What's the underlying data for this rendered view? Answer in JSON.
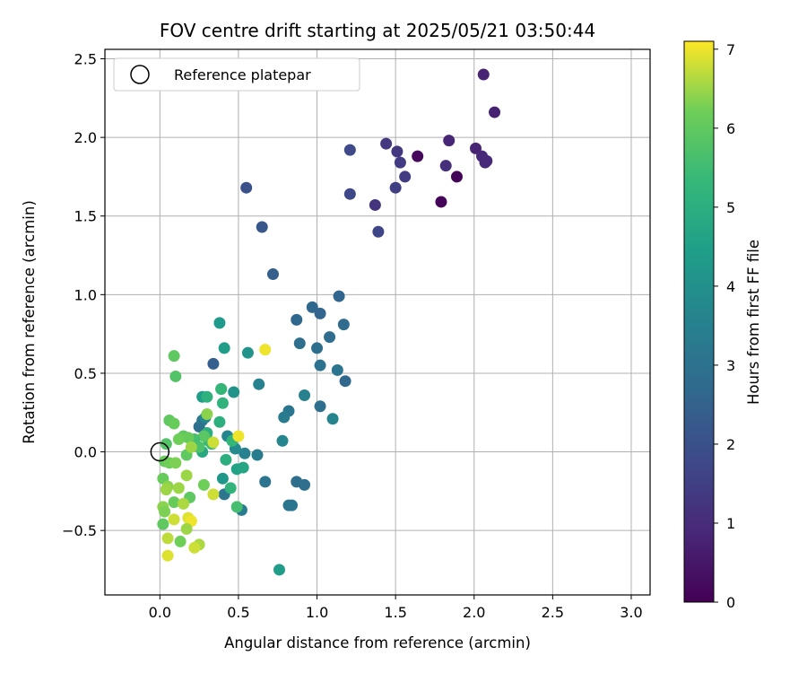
{
  "chart_data": {
    "type": "scatter",
    "title": "FOV centre drift starting at 2025/05/21 03:50:44",
    "xlabel": "Angular distance from reference (arcmin)",
    "ylabel": "Rotation from reference (arcmin)",
    "xlim": [
      -0.35,
      3.12
    ],
    "ylim": [
      -0.91,
      2.56
    ],
    "xticks": [
      0.0,
      0.5,
      1.0,
      1.5,
      2.0,
      2.5,
      3.0
    ],
    "xtick_labels": [
      "0.0",
      "0.5",
      "1.0",
      "1.5",
      "2.0",
      "2.5",
      "3.0"
    ],
    "yticks": [
      -0.5,
      0.0,
      0.5,
      1.0,
      1.5,
      2.0,
      2.5
    ],
    "ytick_labels": [
      "−0.5",
      "0.0",
      "0.5",
      "1.0",
      "1.5",
      "2.0",
      "2.5"
    ],
    "grid": true,
    "legend": {
      "placement": "upper-left",
      "entries": [
        "Reference platepar"
      ]
    },
    "reference_point": [
      0.0,
      0.0
    ],
    "colorbar": {
      "label": "Hours from first FF file",
      "range": [
        0,
        7.1
      ],
      "ticks": [
        0,
        1,
        2,
        3,
        4,
        5,
        6,
        7
      ],
      "tick_labels": [
        "0",
        "1",
        "2",
        "3",
        "4",
        "5",
        "6",
        "7"
      ],
      "colormap": "viridis"
    },
    "points": [
      {
        "x": 1.64,
        "y": 1.88,
        "h": 0.15
      },
      {
        "x": 1.89,
        "y": 1.75,
        "h": 0.1
      },
      {
        "x": 1.79,
        "y": 1.59,
        "h": 0.1
      },
      {
        "x": 2.01,
        "y": 1.93,
        "h": 0.8
      },
      {
        "x": 2.05,
        "y": 1.88,
        "h": 0.9
      },
      {
        "x": 2.08,
        "y": 1.85,
        "h": 0.9
      },
      {
        "x": 2.07,
        "y": 1.84,
        "h": 0.9
      },
      {
        "x": 2.06,
        "y": 2.4,
        "h": 0.8
      },
      {
        "x": 2.13,
        "y": 2.16,
        "h": 0.75
      },
      {
        "x": 1.84,
        "y": 1.98,
        "h": 0.85
      },
      {
        "x": 1.82,
        "y": 1.82,
        "h": 1.1
      },
      {
        "x": 1.37,
        "y": 1.57,
        "h": 1.2
      },
      {
        "x": 1.44,
        "y": 1.96,
        "h": 1.35
      },
      {
        "x": 1.51,
        "y": 1.91,
        "h": 1.3
      },
      {
        "x": 1.53,
        "y": 1.84,
        "h": 1.4
      },
      {
        "x": 1.56,
        "y": 1.75,
        "h": 1.45
      },
      {
        "x": 1.5,
        "y": 1.68,
        "h": 1.5
      },
      {
        "x": 1.39,
        "y": 1.4,
        "h": 1.7
      },
      {
        "x": 1.21,
        "y": 1.92,
        "h": 1.8
      },
      {
        "x": 1.21,
        "y": 1.64,
        "h": 1.75
      },
      {
        "x": 0.55,
        "y": 1.68,
        "h": 2.0
      },
      {
        "x": 0.65,
        "y": 1.43,
        "h": 2.2
      },
      {
        "x": 0.72,
        "y": 1.13,
        "h": 2.4
      },
      {
        "x": 1.14,
        "y": 0.99,
        "h": 2.6
      },
      {
        "x": 0.97,
        "y": 0.92,
        "h": 2.7
      },
      {
        "x": 1.02,
        "y": 0.88,
        "h": 2.6
      },
      {
        "x": 0.87,
        "y": 0.84,
        "h": 2.7
      },
      {
        "x": 1.17,
        "y": 0.81,
        "h": 2.8
      },
      {
        "x": 1.08,
        "y": 0.73,
        "h": 2.8
      },
      {
        "x": 0.89,
        "y": 0.69,
        "h": 2.9
      },
      {
        "x": 1.0,
        "y": 0.66,
        "h": 2.9
      },
      {
        "x": 1.02,
        "y": 0.55,
        "h": 3.0
      },
      {
        "x": 1.13,
        "y": 0.52,
        "h": 3.1
      },
      {
        "x": 1.18,
        "y": 0.45,
        "h": 2.7
      },
      {
        "x": 0.34,
        "y": 0.56,
        "h": 2.4
      },
      {
        "x": 0.92,
        "y": 0.36,
        "h": 3.5
      },
      {
        "x": 1.02,
        "y": 0.29,
        "h": 2.9
      },
      {
        "x": 0.82,
        "y": 0.26,
        "h": 3.1
      },
      {
        "x": 0.79,
        "y": 0.22,
        "h": 3.3
      },
      {
        "x": 1.1,
        "y": 0.21,
        "h": 3.6
      },
      {
        "x": 0.78,
        "y": 0.07,
        "h": 3.7
      },
      {
        "x": 0.63,
        "y": 0.43,
        "h": 3.5
      },
      {
        "x": 0.56,
        "y": 0.63,
        "h": 4.1
      },
      {
        "x": 0.38,
        "y": 0.82,
        "h": 4.3
      },
      {
        "x": 0.41,
        "y": 0.66,
        "h": 4.4
      },
      {
        "x": 0.47,
        "y": 0.38,
        "h": 4.1
      },
      {
        "x": 0.62,
        "y": -0.02,
        "h": 3.3
      },
      {
        "x": 0.67,
        "y": -0.19,
        "h": 3.1
      },
      {
        "x": 0.87,
        "y": -0.19,
        "h": 2.9
      },
      {
        "x": 0.92,
        "y": -0.21,
        "h": 2.9
      },
      {
        "x": 0.82,
        "y": -0.34,
        "h": 3.1
      },
      {
        "x": 0.84,
        "y": -0.34,
        "h": 3.1
      },
      {
        "x": 0.52,
        "y": -0.37,
        "h": 3.3
      },
      {
        "x": 0.41,
        "y": -0.27,
        "h": 3.1
      },
      {
        "x": 0.54,
        "y": -0.01,
        "h": 3.5
      },
      {
        "x": 0.48,
        "y": 0.02,
        "h": 3.8
      },
      {
        "x": 0.43,
        "y": 0.1,
        "h": 3.6
      },
      {
        "x": 0.25,
        "y": 0.16,
        "h": 2.9
      },
      {
        "x": 0.27,
        "y": 0.2,
        "h": 3.1
      },
      {
        "x": 0.29,
        "y": 0.22,
        "h": 3.7
      },
      {
        "x": 0.4,
        "y": -0.17,
        "h": 4.2
      },
      {
        "x": 0.76,
        "y": -0.75,
        "h": 4.4
      },
      {
        "x": 0.49,
        "y": -0.11,
        "h": 4.6
      },
      {
        "x": 0.53,
        "y": -0.1,
        "h": 4.7
      },
      {
        "x": 0.42,
        "y": -0.05,
        "h": 5.0
      },
      {
        "x": 0.45,
        "y": -0.23,
        "h": 5.2
      },
      {
        "x": 0.49,
        "y": -0.35,
        "h": 5.6
      },
      {
        "x": 0.27,
        "y": 0.35,
        "h": 4.4
      },
      {
        "x": 0.3,
        "y": 0.35,
        "h": 5.1
      },
      {
        "x": 0.39,
        "y": 0.4,
        "h": 5.4
      },
      {
        "x": 0.4,
        "y": 0.31,
        "h": 5.2
      },
      {
        "x": 0.38,
        "y": 0.19,
        "h": 5.0
      },
      {
        "x": 0.46,
        "y": 0.07,
        "h": 5.3
      },
      {
        "x": 0.39,
        "y": 0.4,
        "h": 5.3
      },
      {
        "x": 0.27,
        "y": 0.0,
        "h": 4.8
      },
      {
        "x": 0.3,
        "y": 0.12,
        "h": 5.0
      },
      {
        "x": 0.31,
        "y": 0.07,
        "h": 5.4
      },
      {
        "x": 0.33,
        "y": 0.05,
        "h": 5.4
      },
      {
        "x": 0.25,
        "y": 0.03,
        "h": 5.7
      },
      {
        "x": 0.28,
        "y": 0.1,
        "h": 5.9
      },
      {
        "x": 0.22,
        "y": 0.08,
        "h": 5.6
      },
      {
        "x": 0.3,
        "y": 0.24,
        "h": 6.4
      },
      {
        "x": 0.09,
        "y": 0.61,
        "h": 6.0
      },
      {
        "x": 0.1,
        "y": 0.48,
        "h": 5.8
      },
      {
        "x": 0.06,
        "y": 0.2,
        "h": 6.0
      },
      {
        "x": 0.09,
        "y": 0.18,
        "h": 6.1
      },
      {
        "x": 0.04,
        "y": 0.05,
        "h": 5.8
      },
      {
        "x": 0.15,
        "y": 0.1,
        "h": 6.0
      },
      {
        "x": 0.18,
        "y": 0.09,
        "h": 6.1
      },
      {
        "x": 0.12,
        "y": 0.08,
        "h": 6.2
      },
      {
        "x": 0.17,
        "y": -0.02,
        "h": 6.0
      },
      {
        "x": 0.2,
        "y": 0.03,
        "h": 6.5
      },
      {
        "x": 0.03,
        "y": -0.06,
        "h": 6.1
      },
      {
        "x": 0.06,
        "y": -0.07,
        "h": 6.2
      },
      {
        "x": 0.1,
        "y": -0.07,
        "h": 6.3
      },
      {
        "x": 0.17,
        "y": -0.15,
        "h": 6.5
      },
      {
        "x": 0.02,
        "y": -0.17,
        "h": 6.1
      },
      {
        "x": 0.05,
        "y": -0.22,
        "h": 6.4
      },
      {
        "x": 0.04,
        "y": -0.24,
        "h": 6.5
      },
      {
        "x": 0.12,
        "y": -0.23,
        "h": 6.5
      },
      {
        "x": 0.28,
        "y": -0.21,
        "h": 6.2
      },
      {
        "x": 0.09,
        "y": -0.32,
        "h": 6.1
      },
      {
        "x": 0.19,
        "y": -0.29,
        "h": 6.0
      },
      {
        "x": 0.15,
        "y": -0.33,
        "h": 6.6
      },
      {
        "x": 0.34,
        "y": -0.27,
        "h": 6.8
      },
      {
        "x": 0.02,
        "y": -0.35,
        "h": 6.4
      },
      {
        "x": 0.03,
        "y": -0.38,
        "h": 6.3
      },
      {
        "x": 0.09,
        "y": -0.43,
        "h": 6.8
      },
      {
        "x": 0.18,
        "y": -0.42,
        "h": 6.9
      },
      {
        "x": 0.2,
        "y": -0.44,
        "h": 7.0
      },
      {
        "x": 0.02,
        "y": -0.46,
        "h": 6.0
      },
      {
        "x": 0.17,
        "y": -0.49,
        "h": 6.5
      },
      {
        "x": 0.05,
        "y": -0.55,
        "h": 6.7
      },
      {
        "x": 0.13,
        "y": -0.57,
        "h": 6.2
      },
      {
        "x": 0.25,
        "y": -0.59,
        "h": 6.6
      },
      {
        "x": 0.22,
        "y": -0.61,
        "h": 6.8
      },
      {
        "x": 0.05,
        "y": -0.66,
        "h": 6.9
      },
      {
        "x": 0.67,
        "y": 0.65,
        "h": 7.0
      },
      {
        "x": 0.5,
        "y": 0.1,
        "h": 7.0
      },
      {
        "x": 0.34,
        "y": 0.06,
        "h": 6.8
      }
    ]
  }
}
